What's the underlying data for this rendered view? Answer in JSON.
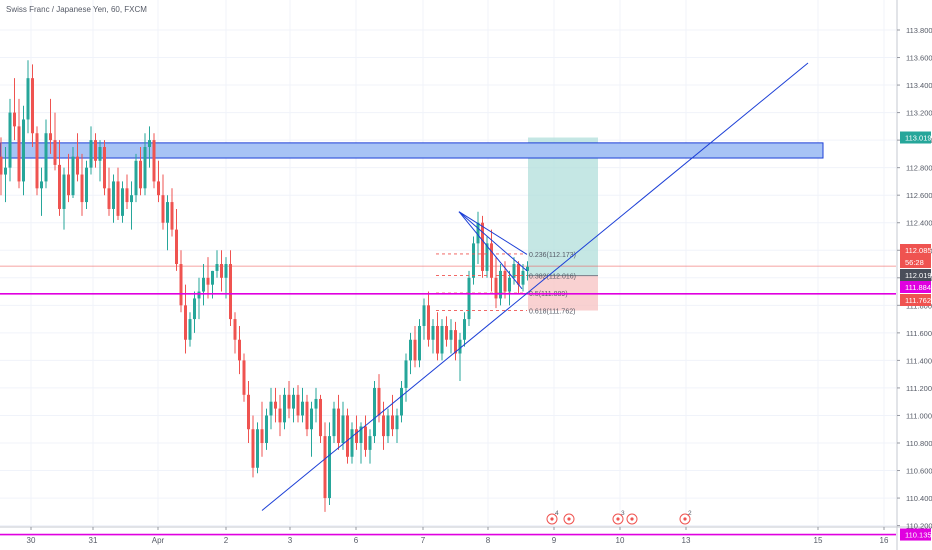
{
  "header": {
    "title": "Swiss Franc / Japanese Yen, 60, FXCM"
  },
  "colors": {
    "up": "#26a69a",
    "down": "#ef5350",
    "trendline": "#1c3fd6",
    "zone_fill": "#a7c3f5",
    "zone_border": "#1c3fd6",
    "magenta": "#e000e0",
    "target_zone": "#b2dfdb",
    "stop_zone": "#f8c6c6",
    "grid": "#f0f3fa",
    "price_tag_current": "#ef5350",
    "price_tag_target": "#26a69a",
    "price_tag_countdown": "#ef5350",
    "price_tag_magenta": "#e000e0",
    "price_tag_neutral": "#4a4e5a"
  },
  "chart_data": {
    "type": "candlestick",
    "symbol": "Swiss Franc / Japanese Yen",
    "interval": "60",
    "source": "FXCM",
    "x_ticks": [
      "30",
      "31",
      "Apr",
      "2",
      "3",
      "6",
      "7",
      "8",
      "9",
      "10",
      "13",
      "15",
      "16"
    ],
    "y_ticks": [
      110.2,
      110.4,
      110.6,
      110.8,
      111.0,
      111.2,
      111.4,
      111.6,
      111.8,
      112.0,
      112.2,
      112.4,
      112.6,
      112.8,
      113.0,
      113.2,
      113.4,
      113.6,
      113.8
    ],
    "y_tick_labels": [
      "110.200",
      "110.400",
      "110.600",
      "110.800",
      "111.000",
      "111.200",
      "111.400",
      "111.600",
      "111.800",
      "112.000",
      "112.200",
      "112.400",
      "112.600",
      "112.800",
      "113.000",
      "113.200",
      "113.400",
      "113.600",
      "113.800"
    ],
    "ylim": [
      110.1,
      113.9
    ],
    "price_tags": [
      {
        "value": 113.019,
        "label": "113.019",
        "kind": "target"
      },
      {
        "value": 112.085,
        "label": "112.085",
        "kind": "current"
      },
      {
        "value": 111.99,
        "label": "56:28",
        "kind": "countdown"
      },
      {
        "value": 112.019,
        "label": "112.019",
        "kind": "neutral"
      },
      {
        "value": 111.884,
        "label": "111.884",
        "kind": "magenta"
      },
      {
        "value": 111.762,
        "label": "111.762",
        "kind": "current"
      },
      {
        "value": 110.135,
        "label": "110.135",
        "kind": "magenta"
      }
    ],
    "fib_levels": [
      {
        "price": 112.173,
        "label": "0.236(112.173)"
      },
      {
        "price": 112.016,
        "label": "0.382(112.016)"
      },
      {
        "price": 111.889,
        "label": "0.5(111.889)"
      },
      {
        "price": 111.762,
        "label": "0.618(111.762)"
      }
    ],
    "resistance_zone": {
      "from": 112.87,
      "to": 112.98
    },
    "horizontal_lines": [
      111.884,
      110.135
    ],
    "position_tool": {
      "entry": 112.016,
      "target": 113.019,
      "stop": 111.762
    },
    "events": [
      {
        "date": "9",
        "count": "4"
      },
      {
        "date": "10",
        "count": "3"
      },
      {
        "date": "13",
        "count": "2"
      }
    ],
    "ohlc": [
      [
        112.88,
        113.02,
        112.6,
        112.75
      ],
      [
        112.75,
        112.95,
        112.55,
        112.8
      ],
      [
        112.8,
        113.3,
        112.7,
        113.2
      ],
      [
        113.2,
        113.45,
        113.0,
        113.1
      ],
      [
        113.1,
        113.3,
        112.65,
        112.7
      ],
      [
        112.7,
        113.25,
        112.6,
        113.15
      ],
      [
        113.15,
        113.58,
        113.05,
        113.45
      ],
      [
        113.45,
        113.55,
        112.95,
        113.05
      ],
      [
        113.05,
        113.1,
        112.6,
        112.65
      ],
      [
        112.65,
        112.8,
        112.45,
        112.7
      ],
      [
        112.7,
        113.15,
        112.65,
        113.05
      ],
      [
        113.05,
        113.3,
        112.9,
        113.0
      ],
      [
        113.0,
        113.2,
        112.78,
        112.82
      ],
      [
        112.82,
        113.0,
        112.45,
        112.5
      ],
      [
        112.5,
        112.8,
        112.35,
        112.75
      ],
      [
        112.75,
        112.9,
        112.55,
        112.6
      ],
      [
        112.6,
        112.95,
        112.58,
        112.88
      ],
      [
        112.88,
        113.05,
        112.7,
        112.75
      ],
      [
        112.75,
        112.9,
        112.45,
        112.55
      ],
      [
        112.55,
        112.85,
        112.5,
        112.8
      ],
      [
        112.8,
        113.1,
        112.75,
        113.0
      ],
      [
        113.0,
        113.05,
        112.8,
        112.85
      ],
      [
        112.85,
        113.0,
        112.7,
        112.95
      ],
      [
        112.95,
        113.0,
        112.6,
        112.65
      ],
      [
        112.65,
        112.8,
        112.45,
        112.5
      ],
      [
        112.5,
        112.75,
        112.4,
        112.7
      ],
      [
        112.7,
        112.8,
        112.42,
        112.45
      ],
      [
        112.45,
        112.7,
        112.4,
        112.65
      ],
      [
        112.65,
        112.75,
        112.5,
        112.55
      ],
      [
        112.55,
        112.7,
        112.35,
        112.6
      ],
      [
        112.6,
        112.9,
        112.55,
        112.85
      ],
      [
        112.85,
        112.95,
        112.6,
        112.65
      ],
      [
        112.65,
        113.05,
        112.6,
        112.95
      ],
      [
        112.95,
        113.1,
        112.8,
        113.0
      ],
      [
        113.0,
        113.05,
        112.65,
        112.7
      ],
      [
        112.7,
        112.85,
        112.55,
        112.6
      ],
      [
        112.6,
        112.75,
        112.35,
        112.4
      ],
      [
        112.4,
        112.6,
        112.2,
        112.55
      ],
      [
        112.55,
        112.65,
        112.3,
        112.35
      ],
      [
        112.35,
        112.5,
        112.05,
        112.1
      ],
      [
        112.1,
        112.2,
        111.75,
        111.8
      ],
      [
        111.8,
        111.95,
        111.45,
        111.55
      ],
      [
        111.55,
        111.75,
        111.5,
        111.7
      ],
      [
        111.7,
        111.9,
        111.6,
        111.85
      ],
      [
        111.85,
        112.0,
        111.7,
        111.9
      ],
      [
        111.9,
        112.1,
        111.8,
        112.0
      ],
      [
        112.0,
        112.15,
        111.85,
        111.95
      ],
      [
        111.95,
        112.05,
        111.85,
        112.05
      ],
      [
        112.05,
        112.2,
        112.0,
        112.1
      ],
      [
        112.1,
        112.2,
        111.9,
        112.0
      ],
      [
        112.0,
        112.15,
        111.85,
        112.1
      ],
      [
        112.1,
        112.2,
        111.65,
        111.7
      ],
      [
        111.7,
        111.75,
        111.45,
        111.55
      ],
      [
        111.55,
        111.65,
        111.3,
        111.4
      ],
      [
        111.4,
        111.45,
        111.1,
        111.15
      ],
      [
        111.15,
        111.25,
        110.8,
        110.9
      ],
      [
        110.9,
        111.0,
        110.55,
        110.62
      ],
      [
        110.62,
        110.95,
        110.58,
        110.9
      ],
      [
        110.9,
        111.1,
        110.7,
        110.8
      ],
      [
        110.8,
        111.05,
        110.75,
        111.0
      ],
      [
        111.0,
        111.2,
        110.9,
        111.1
      ],
      [
        111.1,
        111.2,
        110.95,
        111.05
      ],
      [
        111.05,
        111.15,
        110.85,
        110.95
      ],
      [
        110.95,
        111.2,
        110.9,
        111.15
      ],
      [
        111.15,
        111.25,
        110.98,
        111.05
      ],
      [
        111.05,
        111.2,
        110.95,
        111.15
      ],
      [
        111.15,
        111.22,
        110.95,
        111.0
      ],
      [
        111.0,
        111.2,
        110.95,
        111.1
      ],
      [
        111.1,
        111.15,
        110.85,
        110.9
      ],
      [
        110.9,
        111.1,
        110.7,
        111.05
      ],
      [
        111.05,
        111.2,
        110.95,
        111.12
      ],
      [
        111.12,
        111.15,
        110.8,
        110.85
      ],
      [
        110.85,
        110.95,
        110.3,
        110.4
      ],
      [
        110.4,
        110.95,
        110.35,
        110.85
      ],
      [
        110.85,
        111.1,
        110.8,
        111.05
      ],
      [
        111.05,
        111.15,
        110.75,
        110.8
      ],
      [
        110.8,
        111.1,
        110.75,
        111.0
      ],
      [
        111.0,
        111.05,
        110.65,
        110.7
      ],
      [
        110.7,
        110.95,
        110.65,
        110.9
      ],
      [
        110.9,
        111.0,
        110.75,
        110.8
      ],
      [
        110.8,
        110.95,
        110.65,
        110.92
      ],
      [
        110.92,
        111.0,
        110.7,
        110.75
      ],
      [
        110.75,
        110.9,
        110.65,
        110.85
      ],
      [
        110.85,
        111.25,
        110.8,
        111.2
      ],
      [
        111.2,
        111.3,
        110.95,
        111.0
      ],
      [
        111.0,
        111.1,
        110.75,
        110.85
      ],
      [
        110.85,
        111.05,
        110.8,
        111.0
      ],
      [
        111.0,
        111.15,
        110.85,
        110.9
      ],
      [
        110.9,
        111.05,
        110.8,
        111.0
      ],
      [
        111.0,
        111.25,
        110.95,
        111.2
      ],
      [
        111.2,
        111.45,
        111.1,
        111.4
      ],
      [
        111.4,
        111.6,
        111.3,
        111.55
      ],
      [
        111.55,
        111.65,
        111.35,
        111.4
      ],
      [
        111.4,
        111.7,
        111.35,
        111.65
      ],
      [
        111.65,
        111.85,
        111.55,
        111.8
      ],
      [
        111.8,
        111.9,
        111.5,
        111.55
      ],
      [
        111.55,
        111.7,
        111.45,
        111.65
      ],
      [
        111.65,
        111.75,
        111.4,
        111.45
      ],
      [
        111.45,
        111.7,
        111.4,
        111.65
      ],
      [
        111.65,
        111.72,
        111.5,
        111.55
      ],
      [
        111.55,
        111.7,
        111.45,
        111.62
      ],
      [
        111.62,
        111.68,
        111.4,
        111.45
      ],
      [
        111.45,
        111.6,
        111.25,
        111.55
      ],
      [
        111.55,
        111.75,
        111.5,
        111.7
      ],
      [
        111.7,
        112.05,
        111.65,
        112.0
      ],
      [
        112.0,
        112.3,
        111.95,
        112.25
      ],
      [
        112.25,
        112.48,
        112.1,
        112.4
      ],
      [
        112.4,
        112.45,
        112.0,
        112.05
      ],
      [
        112.05,
        112.3,
        112.0,
        112.25
      ],
      [
        112.25,
        112.35,
        111.9,
        112.0
      ],
      [
        112.0,
        112.15,
        111.78,
        111.85
      ],
      [
        111.85,
        112.1,
        111.8,
        112.05
      ],
      [
        112.05,
        112.12,
        111.85,
        111.9
      ],
      [
        111.9,
        112.05,
        111.8,
        112.0
      ],
      [
        112.0,
        112.15,
        111.95,
        112.1
      ],
      [
        112.1,
        112.12,
        111.88,
        111.95
      ],
      [
        111.95,
        112.1,
        111.9,
        112.05
      ],
      [
        112.05,
        112.12,
        111.98,
        112.08
      ]
    ]
  }
}
